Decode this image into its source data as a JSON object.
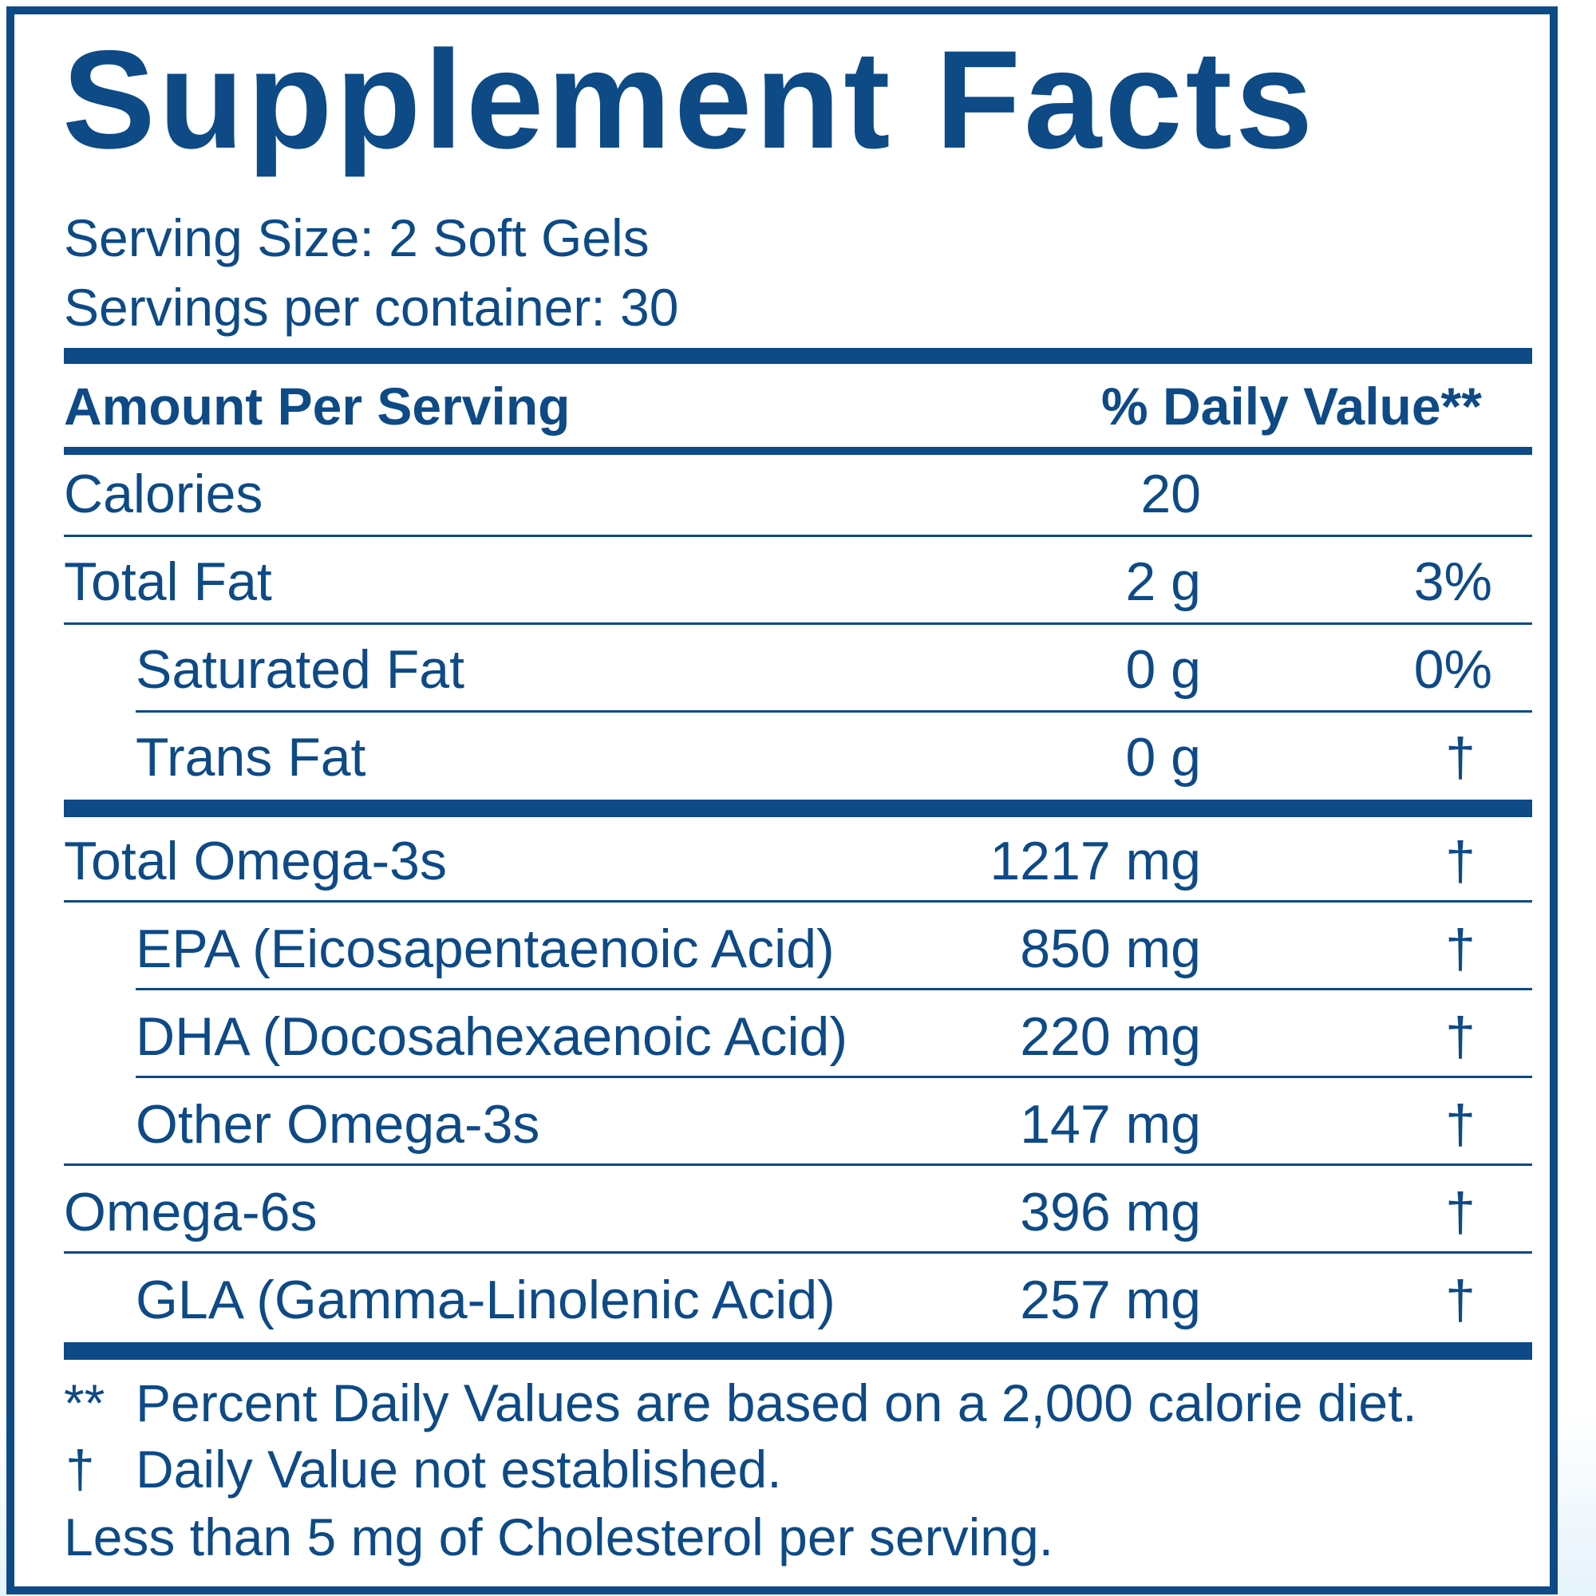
{
  "title": "Supplement Facts",
  "serving_size": "Serving Size: 2 Soft Gels",
  "servings_per_container": "Servings per container: 30",
  "header": {
    "amount_label": "Amount Per Serving",
    "dv_label": "% Daily Value**"
  },
  "rows": [
    {
      "name": "Calories",
      "amount": "20",
      "dv": ""
    },
    {
      "name": "Total Fat",
      "amount": "2 g",
      "dv": "3%"
    },
    {
      "name": "Saturated Fat",
      "amount": "0 g",
      "dv": "0%"
    },
    {
      "name": "Trans Fat",
      "amount": "0 g",
      "dv": "†"
    },
    {
      "name": "Total Omega-3s",
      "amount": "1217 mg",
      "dv": "†"
    },
    {
      "name": "EPA (Eicosapentaenoic Acid)",
      "amount": "850 mg",
      "dv": "†"
    },
    {
      "name": "DHA (Docosahexaenoic Acid)",
      "amount": "220 mg",
      "dv": "†"
    },
    {
      "name": "Other Omega-3s",
      "amount": "147 mg",
      "dv": "†"
    },
    {
      "name": "Omega-6s",
      "amount": "396 mg",
      "dv": "†"
    },
    {
      "name": "GLA (Gamma-Linolenic Acid)",
      "amount": "257 mg",
      "dv": "†"
    }
  ],
  "footnotes": {
    "dv_symbol": "**",
    "dv_text": "Percent Daily Values are based on a 2,000 calorie diet.",
    "dagger_symbol": "†",
    "dagger_text": "Daily Value not established.",
    "cholesterol": "Less than 5 mg of Cholesterol per serving."
  },
  "colors": {
    "ink": "#0d4a86",
    "background": "#ffffff"
  }
}
